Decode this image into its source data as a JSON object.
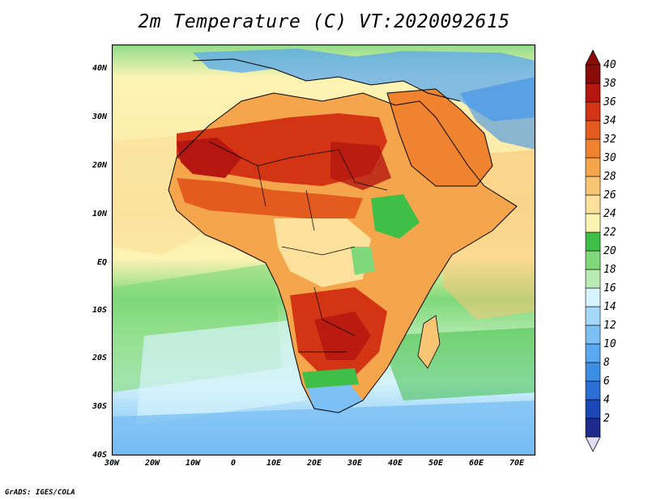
{
  "title": "2m Temperature (C) VT:2020092615",
  "credit": "GrADS: IGES/COLA",
  "map": {
    "lat_labels": [
      "40N",
      "30N",
      "20N",
      "10N",
      "EQ",
      "10S",
      "20S",
      "30S",
      "40S"
    ],
    "lon_labels": [
      "30W",
      "20W",
      "10W",
      "0",
      "10E",
      "20E",
      "30E",
      "40E",
      "50E",
      "60E",
      "70E"
    ],
    "lat_range": [
      -40,
      45
    ],
    "lon_range": [
      -30,
      75
    ]
  },
  "colorbar": {
    "levels": [
      "2",
      "4",
      "6",
      "8",
      "10",
      "12",
      "14",
      "16",
      "18",
      "20",
      "22",
      "24",
      "26",
      "28",
      "30",
      "32",
      "34",
      "36",
      "38",
      "40"
    ],
    "colors": [
      "#1e2a8c",
      "#1b47b8",
      "#2a6ed6",
      "#3d8fe6",
      "#5aa8f0",
      "#7cc0f5",
      "#a6d8fa",
      "#d6f4fb",
      "#b9ecb4",
      "#7fd97a",
      "#3fbf47",
      "#fdf4b4",
      "#fbe19b",
      "#f8c575",
      "#f5a64d",
      "#ef832f",
      "#e45b1f",
      "#d33414",
      "#b5160f",
      "#8a0c0a"
    ],
    "low_arrow_color": "#e3dcf7",
    "high_arrow_color": "#8a0c0a"
  }
}
